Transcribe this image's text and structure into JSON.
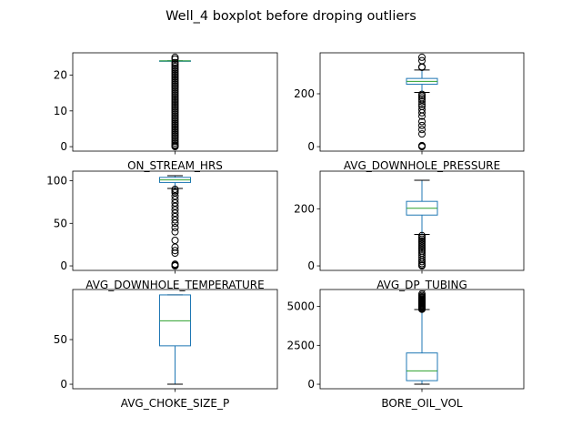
{
  "figure": {
    "title": "Well_4 boxplot before droping outliers"
  },
  "chart_data": [
    {
      "type": "box",
      "category": "ON_STREAM_HRS",
      "ylim": [
        -1.25,
        26.25
      ],
      "yticks": [
        0,
        10,
        20
      ],
      "ytick_labels": [
        "0",
        "10",
        "20"
      ],
      "box": {
        "whislo": 24,
        "q1": 24,
        "med": 24,
        "q3": 24,
        "whishi": 24
      },
      "fliers": [
        0,
        0.2,
        0.5,
        1,
        1.5,
        2,
        2.5,
        3,
        3.5,
        4,
        4.5,
        5,
        5.5,
        6,
        6.5,
        7,
        7.5,
        8,
        8.5,
        9,
        9.5,
        10,
        10.5,
        11,
        11.5,
        12,
        12.5,
        13,
        13.5,
        14,
        14.5,
        15,
        15.5,
        16,
        16.5,
        17,
        17.5,
        18,
        18.5,
        19,
        19.5,
        20,
        20.5,
        21,
        21.5,
        22,
        22.5,
        23,
        23.5,
        24.5,
        25
      ]
    },
    {
      "type": "box",
      "category": "AVG_DOWNHOLE_PRESSURE",
      "ylim": [
        -16.9,
        354.9
      ],
      "yticks": [
        0,
        200
      ],
      "ytick_labels": [
        "0",
        "200"
      ],
      "box": {
        "whislo": 205,
        "q1": 236,
        "med": 247,
        "q3": 258,
        "whishi": 290
      },
      "fliers": [
        0,
        2,
        4,
        48,
        65,
        80,
        95,
        115,
        128,
        140,
        152,
        160,
        170,
        178,
        185,
        192,
        198,
        300,
        302,
        325,
        338
      ]
    },
    {
      "type": "box",
      "category": "AVG_DOWNHOLE_TEMPERATURE",
      "ylim": [
        -5.3,
        111.3
      ],
      "yticks": [
        0,
        50,
        100
      ],
      "ytick_labels": [
        "0",
        "50",
        "100"
      ],
      "box": {
        "whislo": 91,
        "q1": 98,
        "med": 101,
        "q3": 104,
        "whishi": 106
      },
      "fliers": [
        0,
        0.5,
        1,
        2,
        15,
        18,
        22,
        30,
        40,
        45,
        50,
        54,
        58,
        62,
        66,
        70,
        74,
        78,
        82,
        86,
        88,
        90
      ]
    },
    {
      "type": "box",
      "category": "AVG_DP_TUBING",
      "ylim": [
        -15.8,
        331.8
      ],
      "yticks": [
        0,
        200
      ],
      "ytick_labels": [
        "0",
        "200"
      ],
      "box": {
        "whislo": 110,
        "q1": 178,
        "med": 202,
        "q3": 226,
        "whishi": 300
      },
      "fliers": [
        0,
        3,
        8,
        15,
        22,
        30,
        38,
        45,
        52,
        58,
        64,
        70,
        76,
        82,
        88,
        94,
        100,
        106
      ]
    },
    {
      "type": "box",
      "category": "AVG_CHOKE_SIZE_P",
      "ylim": [
        -5.05,
        106.05
      ],
      "yticks": [
        0,
        50
      ],
      "ytick_labels": [
        "0",
        "50"
      ],
      "box": {
        "whislo": 0,
        "q1": 43,
        "med": 71,
        "q3": 100,
        "whishi": 100
      },
      "fliers": []
    },
    {
      "type": "box",
      "category": "BORE_OIL_VOL",
      "ylim": [
        -290,
        6090
      ],
      "yticks": [
        0,
        2500,
        5000
      ],
      "ytick_labels": [
        "0",
        "2500",
        "5000"
      ],
      "box": {
        "whislo": 0,
        "q1": 230,
        "med": 860,
        "q3": 2010,
        "whishi": 4800
      },
      "fliers": [
        4820,
        4860,
        4900,
        4950,
        5000,
        5050,
        5100,
        5150,
        5200,
        5250,
        5300,
        5350,
        5400,
        5450,
        5500,
        5560,
        5620,
        5700,
        5800
      ]
    }
  ]
}
